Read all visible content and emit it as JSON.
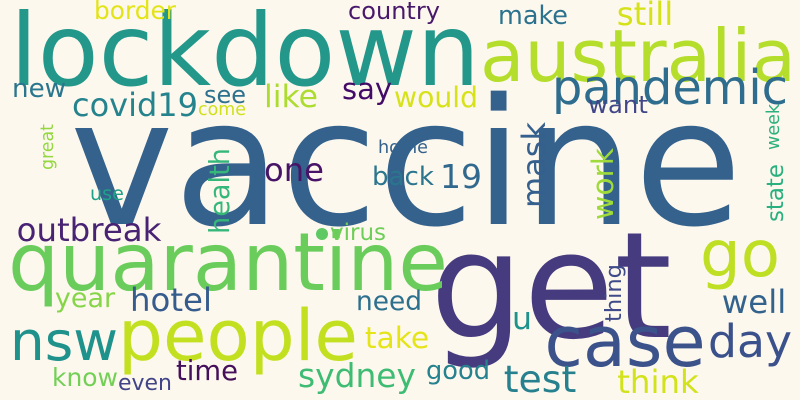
{
  "words": [
    {
      "text": "vaccine",
      "color": "#34628c"
    },
    {
      "text": "lockdown",
      "color": "#22978a"
    },
    {
      "text": "get",
      "color": "#463b7e"
    },
    {
      "text": "australia",
      "color": "#b5dd2b"
    },
    {
      "text": "quarantine",
      "color": "#6acd5b"
    },
    {
      "text": "people",
      "color": "#c3e020"
    },
    {
      "text": "pandemic",
      "color": "#2f6d8e"
    },
    {
      "text": "go",
      "color": "#bfdf25"
    },
    {
      "text": "case",
      "color": "#3b528b"
    },
    {
      "text": "day",
      "color": "#3b518b"
    },
    {
      "text": "nsw",
      "color": "#1f928c"
    },
    {
      "text": "19",
      "color": "#31688e"
    },
    {
      "text": "one",
      "color": "#471467"
    },
    {
      "text": "mask",
      "color": "#355f8d"
    },
    {
      "text": "work",
      "color": "#9fda3a"
    },
    {
      "text": "hotel",
      "color": "#365c8d"
    },
    {
      "text": "health",
      "color": "#35b779"
    },
    {
      "text": "need",
      "color": "#2d708e"
    },
    {
      "text": "sydney",
      "color": "#3ebc73"
    },
    {
      "text": "test",
      "color": "#27808e"
    },
    {
      "text": "good",
      "color": "#26828e"
    },
    {
      "text": "time",
      "color": "#440f5b"
    },
    {
      "text": "know",
      "color": "#73d056"
    },
    {
      "text": "think",
      "color": "#d2e21b"
    },
    {
      "text": "well",
      "color": "#33638d"
    },
    {
      "text": "like",
      "color": "#addc30"
    },
    {
      "text": "would",
      "color": "#d8e219"
    },
    {
      "text": "say",
      "color": "#440a68"
    },
    {
      "text": "make",
      "color": "#2c728e"
    },
    {
      "text": "still",
      "color": "#d5e21a"
    },
    {
      "text": "covid19",
      "color": "#25838e"
    },
    {
      "text": "new",
      "color": "#2a768e"
    },
    {
      "text": "back",
      "color": "#2b758e"
    },
    {
      "text": "home",
      "color": "#33628d"
    },
    {
      "text": "state",
      "color": "#2ab07f"
    },
    {
      "text": "week",
      "color": "#2cb17e"
    },
    {
      "text": "year",
      "color": "#86d549"
    },
    {
      "text": "take",
      "color": "#e5e419"
    },
    {
      "text": "outbreak",
      "color": "#482374"
    },
    {
      "text": "country",
      "color": "#48186a"
    },
    {
      "text": "border",
      "color": "#e3e418"
    },
    {
      "text": "see",
      "color": "#2d718e"
    },
    {
      "text": "come",
      "color": "#d0e11c"
    },
    {
      "text": "want",
      "color": "#404688"
    },
    {
      "text": "great",
      "color": "#93d741"
    },
    {
      "text": "use",
      "color": "#1fa088"
    },
    {
      "text": "virus",
      "color": "#6ece58"
    },
    {
      "text": "thing",
      "color": "#3e4a89"
    },
    {
      "text": "u",
      "color": "#20928c"
    },
    {
      "text": "even",
      "color": "#414487"
    },
    {
      "text": "dot",
      "color": "#5ec962"
    }
  ]
}
